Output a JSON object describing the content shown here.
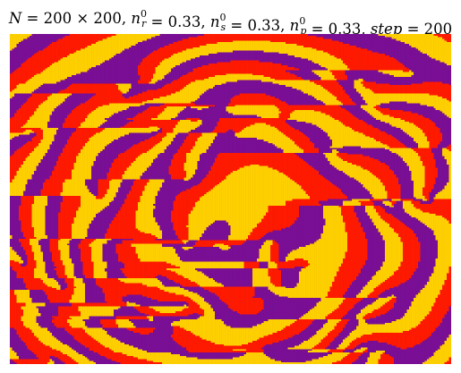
{
  "chart_data": {
    "type": "heatmap",
    "title": {
      "parts": [
        {
          "text": "N",
          "italic": true
        },
        {
          "text": " = 200 × 200, ",
          "italic": false
        },
        {
          "text": "n",
          "italic": true
        },
        {
          "text": "r",
          "italic": true,
          "sub": true,
          "sup_text": "0"
        },
        {
          "text": " = 0.33, ",
          "italic": false
        },
        {
          "text": "n",
          "italic": true
        },
        {
          "text": "s",
          "italic": true,
          "sub": true,
          "sup_text": "0"
        },
        {
          "text": " = 0.33, ",
          "italic": false
        },
        {
          "text": "n",
          "italic": true
        },
        {
          "text": "p",
          "italic": true,
          "sub": true,
          "sup_text": "0"
        },
        {
          "text": " = 0.33, ",
          "italic": false
        },
        {
          "text": "step",
          "italic": true
        },
        {
          "text": " = 200",
          "italic": false
        }
      ]
    },
    "grid_size": [
      200,
      200
    ],
    "parameters": {
      "N": "200 × 200",
      "n_r0": 0.33,
      "n_s0": 0.33,
      "n_p0": 0.33,
      "step": 200
    },
    "states": [
      {
        "name": "r",
        "color": "#ff1a00"
      },
      {
        "name": "s",
        "color": "#ffd000"
      },
      {
        "name": "p",
        "color": "#7a0f96"
      }
    ],
    "axes_visible": false,
    "grid": false
  }
}
